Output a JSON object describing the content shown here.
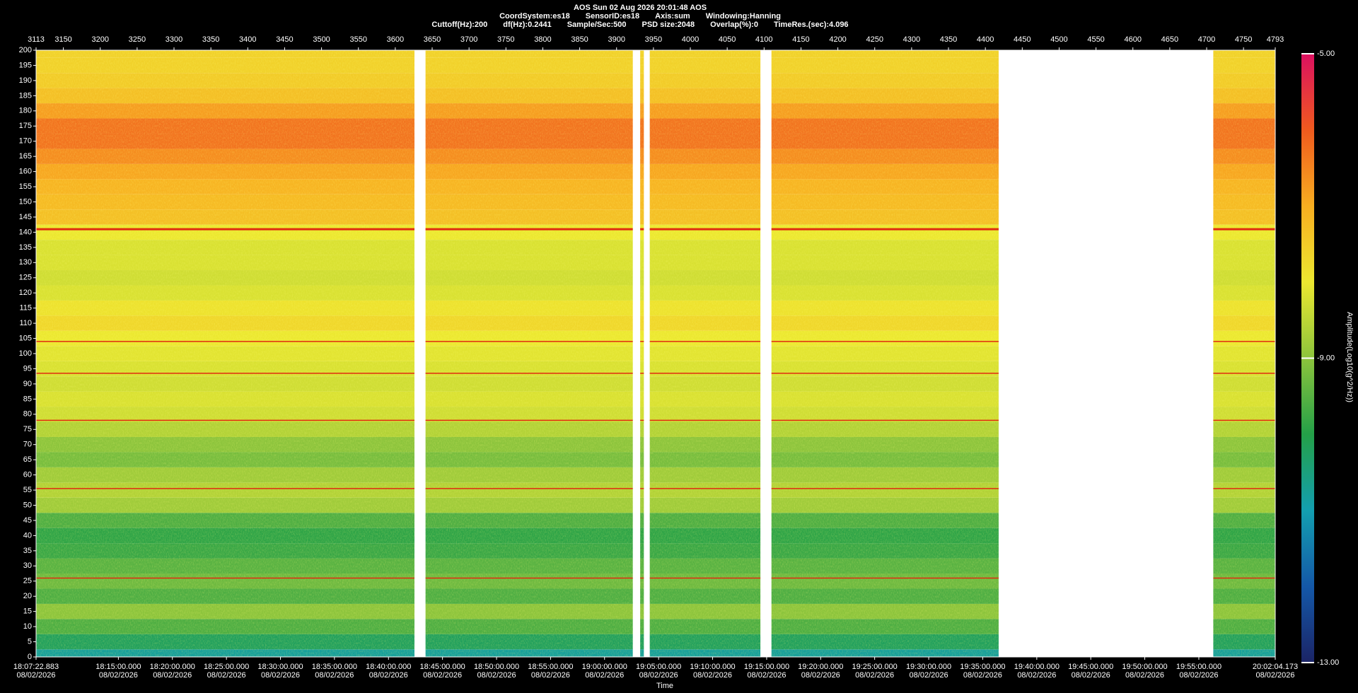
{
  "chart_data": {
    "type": "spectrogram",
    "title": "AOS  Sun 02 Aug 2026 20:01:48  AOS",
    "info_line_1": [
      "CoordSystem:es18",
      "SensorID:es18",
      "Axis:sum",
      "Windowing:Hanning"
    ],
    "info_line_2": [
      "Cuttoff(Hz):200",
      "df(Hz):0.2441",
      "Sample/Sec:500",
      "PSD size:2048",
      "Overlap(%):0",
      "TimeRes.(sec):4.096"
    ],
    "xlabel": "Time",
    "colorbar_label": "Amplitude(Log10(g^2/Hz))",
    "xlim": [
      3113,
      4793
    ],
    "xticks": [
      3113,
      3150,
      3200,
      3250,
      3300,
      3350,
      3400,
      3450,
      3500,
      3550,
      3600,
      3650,
      3700,
      3750,
      3800,
      3850,
      3900,
      3950,
      4000,
      4050,
      4100,
      4150,
      4200,
      4250,
      4300,
      4350,
      4400,
      4450,
      4500,
      4550,
      4600,
      4650,
      4700,
      4750,
      4793
    ],
    "time_ticks": [
      {
        "value": 3113,
        "label": "18:07:22.883"
      },
      {
        "value": 3224.6,
        "label": "18:15:00.000"
      },
      {
        "value": 3297.8,
        "label": "18:20:00.000"
      },
      {
        "value": 3371.1,
        "label": "18:25:00.000"
      },
      {
        "value": 3444.3,
        "label": "18:30:00.000"
      },
      {
        "value": 3517.5,
        "label": "18:35:00.000"
      },
      {
        "value": 3590.8,
        "label": "18:40:00.000"
      },
      {
        "value": 3664.0,
        "label": "18:45:00.000"
      },
      {
        "value": 3737.3,
        "label": "18:50:00.000"
      },
      {
        "value": 3810.5,
        "label": "18:55:00.000"
      },
      {
        "value": 3883.7,
        "label": "19:00:00.000"
      },
      {
        "value": 3957.0,
        "label": "19:05:00.000"
      },
      {
        "value": 4030.2,
        "label": "19:10:00.000"
      },
      {
        "value": 4103.5,
        "label": "19:15:00.000"
      },
      {
        "value": 4176.7,
        "label": "19:20:00.000"
      },
      {
        "value": 4249.9,
        "label": "19:25:00.000"
      },
      {
        "value": 4323.2,
        "label": "19:30:00.000"
      },
      {
        "value": 4396.4,
        "label": "19:35:00.000"
      },
      {
        "value": 4469.7,
        "label": "19:40:00.000"
      },
      {
        "value": 4542.9,
        "label": "19:45:00.000"
      },
      {
        "value": 4616.1,
        "label": "19:50:00.000"
      },
      {
        "value": 4689.4,
        "label": "19:55:00.000"
      },
      {
        "value": 4793,
        "label": "20:02:04.173"
      }
    ],
    "time_tick_date": "08/02/2026",
    "ylim": [
      0,
      200
    ],
    "yticks": [
      0,
      5,
      10,
      15,
      20,
      25,
      30,
      35,
      40,
      45,
      50,
      55,
      60,
      65,
      70,
      75,
      80,
      85,
      90,
      95,
      100,
      105,
      110,
      115,
      120,
      125,
      130,
      135,
      140,
      145,
      150,
      155,
      160,
      165,
      170,
      175,
      180,
      185,
      190,
      195,
      200
    ],
    "frequencies": [
      0,
      5,
      10,
      15,
      20,
      25,
      30,
      35,
      40,
      45,
      50,
      55,
      60,
      65,
      70,
      75,
      80,
      85,
      90,
      95,
      100,
      105,
      110,
      115,
      120,
      125,
      130,
      135,
      140,
      145,
      150,
      155,
      160,
      165,
      170,
      175,
      180,
      185,
      190,
      195,
      200
    ],
    "spectrum": [
      -10.8,
      -10.2,
      -9.6,
      -9.0,
      -9.6,
      -9.3,
      -9.5,
      -9.8,
      -9.9,
      -9.6,
      -8.8,
      -8.6,
      -8.8,
      -9.2,
      -9.0,
      -8.6,
      -8.3,
      -8.2,
      -8.3,
      -8.2,
      -8.1,
      -8.0,
      -7.7,
      -7.9,
      -8.2,
      -8.3,
      -8.2,
      -8.2,
      -8.0,
      -7.3,
      -7.2,
      -7.1,
      -6.9,
      -6.6,
      -6.3,
      -6.3,
      -6.8,
      -7.3,
      -7.5,
      -7.6,
      -7.6
    ],
    "segments": [
      [
        3113,
        3626
      ],
      [
        3641,
        3922
      ],
      [
        3932,
        3937
      ],
      [
        3945,
        4095
      ],
      [
        4110,
        4418
      ],
      [
        4709,
        4793
      ]
    ],
    "line_frequencies": [
      141,
      93.5,
      78,
      104,
      55.5,
      26
    ],
    "line_color": "#e02a10",
    "clim": [
      -13,
      -5
    ],
    "cticks": [
      {
        "value": -5,
        "label": "-5.00"
      },
      {
        "value": -9,
        "label": "-9.00"
      },
      {
        "value": -13,
        "label": "-13.00"
      }
    ],
    "colormap": [
      "#1b2466",
      "#1458a8",
      "#139fb0",
      "#24a048",
      "#8cc43c",
      "#ece830",
      "#f8ae20",
      "#f05a1e",
      "#dc1060"
    ]
  }
}
